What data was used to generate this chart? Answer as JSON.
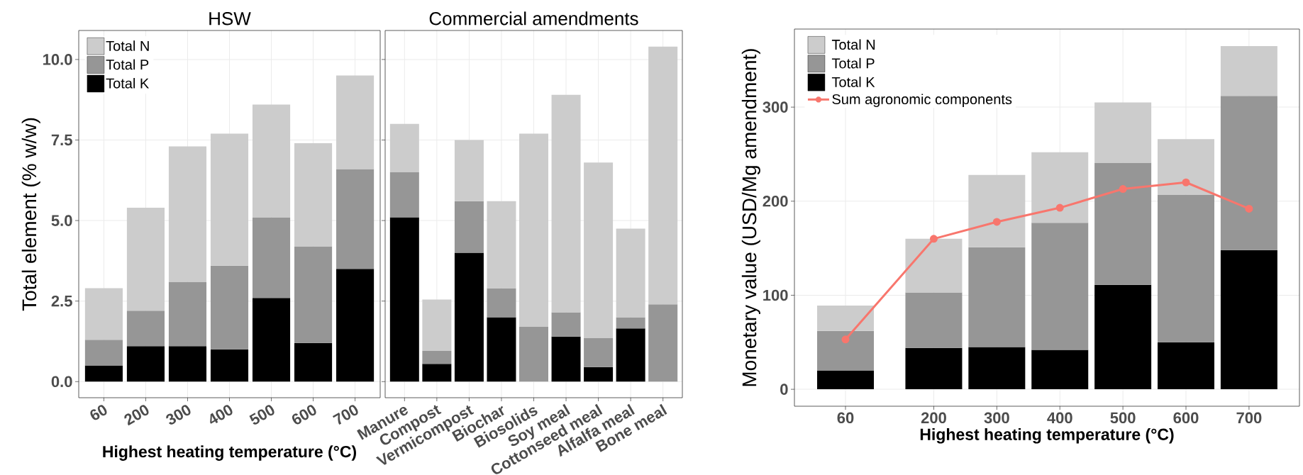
{
  "chart_data": [
    {
      "type": "bar",
      "title": "HSW",
      "xlabel": "Highest heating temperature (°C)",
      "ylabel": "Total element (% w/w)",
      "categories": [
        "60",
        "200",
        "300",
        "400",
        "500",
        "600",
        "700"
      ],
      "series": [
        {
          "name": "Total K",
          "color": "#000000",
          "values": [
            0.5,
            1.1,
            1.1,
            1.0,
            2.6,
            1.2,
            3.5
          ]
        },
        {
          "name": "Total P",
          "color": "#969696",
          "values": [
            0.8,
            1.1,
            2.0,
            2.6,
            2.5,
            3.0,
            3.1
          ]
        },
        {
          "name": "Total N",
          "color": "#cccccc",
          "values": [
            1.6,
            3.2,
            4.2,
            4.1,
            3.5,
            3.2,
            2.9
          ]
        }
      ],
      "stacked": true,
      "ylim": [
        -0.5,
        10.9
      ],
      "yticks": [
        {
          "value": 0,
          "label": "0.0"
        },
        {
          "value": 2.5,
          "label": "2.5"
        },
        {
          "value": 5,
          "label": "5.0"
        },
        {
          "value": 7.5,
          "label": "7.5"
        },
        {
          "value": 10,
          "label": "10.0"
        }
      ],
      "grid": true,
      "legend": "top left"
    },
    {
      "type": "bar",
      "title": "Commercial amendments",
      "categories": [
        "Manure",
        "Compost",
        "Vermicompost",
        "Biochar",
        "Biosolids",
        "Soy meal",
        "Cottonseed meal",
        "Alfalfa meal",
        "Bone meal"
      ],
      "series": [
        {
          "color": "#000000",
          "values": [
            5.1,
            0.55,
            4.0,
            2.0,
            0,
            1.4,
            0.45,
            1.65,
            0
          ]
        },
        {
          "color": "#969696",
          "values": [
            1.4,
            0.4,
            1.6,
            0.9,
            1.7,
            0.75,
            0.9,
            0.35,
            2.4
          ]
        },
        {
          "color": "#cccccc",
          "values": [
            1.5,
            1.6,
            1.9,
            2.7,
            6.0,
            6.75,
            5.45,
            2.75,
            8.0
          ]
        }
      ],
      "stacked": true,
      "ylim": [
        -0.5,
        10.9
      ],
      "yticks": [
        {
          "value": 0,
          "label": null
        },
        {
          "value": 2.5,
          "label": null
        },
        {
          "value": 5,
          "label": null
        },
        {
          "value": 7.5,
          "label": null
        },
        {
          "value": 10,
          "label": null
        }
      ],
      "grid": true,
      "tick_labels": "x"
    },
    {
      "type": "bar",
      "xlabel": "Highest heating temperature (°C)",
      "ylabel": "Monetary value (USD/Mg amendment)",
      "x": [
        60,
        200,
        300,
        400,
        500,
        600,
        700
      ],
      "series": [
        {
          "name": "Total K",
          "color": "#000000",
          "values": [
            20,
            44,
            45,
            42,
            111,
            50,
            148
          ]
        },
        {
          "name": "Total P",
          "color": "#969696",
          "values": [
            42,
            59,
            106,
            135,
            130,
            157,
            164
          ]
        },
        {
          "name": "Total N",
          "color": "#cccccc",
          "values": [
            27,
            57,
            77,
            75,
            64,
            59,
            53
          ]
        },
        {
          "name": "Sum agronomic components",
          "type": "line",
          "color": "#f8766d",
          "values": [
            53,
            160,
            178,
            193,
            213,
            220,
            192
          ]
        }
      ],
      "stacked": true,
      "marker": "circle",
      "xlim": [
        -21,
        780
      ],
      "ylim": [
        -18,
        383
      ],
      "xticks": [
        60,
        200,
        300,
        400,
        500,
        600,
        700
      ],
      "yticks": [
        0,
        100,
        200,
        300
      ],
      "grid": true,
      "legend": "top left"
    }
  ]
}
